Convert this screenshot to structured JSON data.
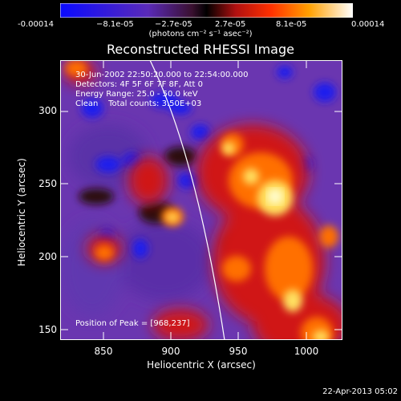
{
  "colorbar": {
    "ticks": [
      "-0.00014",
      "−8.1e-05",
      "−2.7e-05",
      "2.7e-05",
      "8.1e-05",
      "0.00014"
    ],
    "unit": "(photons cm⁻² s⁻¹ asec⁻²)"
  },
  "title": "Reconstructed RHESSI Image",
  "annotations": {
    "time": "30-Jun-2002 22:50:20.000 to 22:54:00.000",
    "detectors": "Detectors: 4F 5F 6F 7F 8F, Att 0",
    "energy": "Energy Range: 25.0 - 50.0 keV",
    "clean": "Clean    Total counts: 3.50E+03",
    "peak": "Position of Peak = [968,237]"
  },
  "axes": {
    "xlabel": "Heliocentric X (arcsec)",
    "ylabel": "Heliocentric Y (arcsec)",
    "xticks": [
      "850",
      "900",
      "950",
      "1000"
    ],
    "yticks": [
      "150",
      "200",
      "250",
      "300"
    ]
  },
  "datestamp": "22-Apr-2013 05:02",
  "colors": {
    "background": "#000000",
    "limb_line": "#ffffff",
    "colormap": [
      "#1010ff",
      "#6a3aa8",
      "#8a30a0",
      "#ff1010",
      "#ff9000",
      "#ffff80",
      "#ffffff"
    ]
  }
}
